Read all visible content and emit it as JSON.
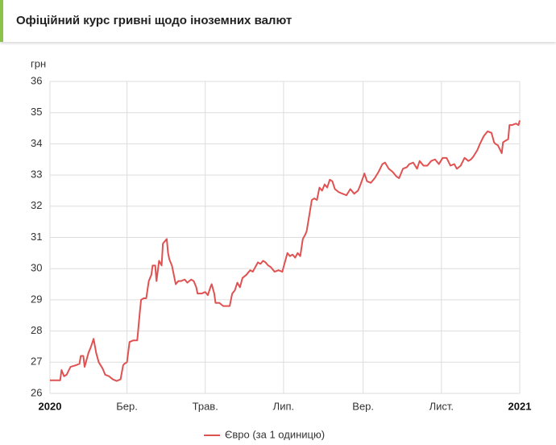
{
  "header": {
    "title": "Офіційний курс гривні щодо іноземних валют"
  },
  "chart_data": {
    "type": "line",
    "y_label": "грн",
    "xlim": [
      0,
      366
    ],
    "xticks": [
      {
        "value": 0,
        "label": "2020"
      },
      {
        "value": 60,
        "label": "Бер."
      },
      {
        "value": 121,
        "label": "Трав."
      },
      {
        "value": 182,
        "label": "Лип."
      },
      {
        "value": 244,
        "label": "Вер."
      },
      {
        "value": 305,
        "label": "Лист."
      },
      {
        "value": 366,
        "label": "2021"
      }
    ],
    "ylim": [
      26,
      36
    ],
    "yticks": [
      26,
      27,
      28,
      29,
      30,
      31,
      32,
      33,
      34,
      35,
      36
    ],
    "grid": true,
    "legend": "bottom",
    "x": [
      0,
      8,
      9,
      11,
      13,
      16,
      20,
      23,
      24,
      26,
      27,
      30,
      32,
      34,
      36,
      38,
      41,
      43,
      46,
      49,
      52,
      55,
      57,
      58,
      60,
      62,
      65,
      68,
      70,
      71,
      73,
      75,
      77,
      79,
      80,
      82,
      83,
      85,
      87,
      88,
      89,
      91,
      92,
      93,
      95,
      98,
      100,
      102,
      105,
      107,
      110,
      112,
      114,
      115,
      118,
      121,
      123,
      125,
      126,
      128,
      129,
      132,
      135,
      138,
      140,
      142,
      144,
      146,
      148,
      150,
      153,
      156,
      158,
      160,
      162,
      164,
      166,
      168,
      170,
      172,
      175,
      178,
      181,
      183,
      185,
      187,
      189,
      191,
      193,
      195,
      197,
      199,
      200,
      202,
      204,
      206,
      208,
      210,
      212,
      214,
      216,
      218,
      220,
      222,
      225,
      228,
      231,
      234,
      237,
      240,
      242,
      245,
      247,
      250,
      253,
      256,
      259,
      261,
      264,
      267,
      270,
      272,
      275,
      278,
      280,
      283,
      286,
      288,
      291,
      294,
      297,
      300,
      303,
      306,
      309,
      312,
      315,
      317,
      320,
      323,
      326,
      328,
      330,
      333,
      335,
      338,
      341,
      344,
      346,
      347,
      349,
      352,
      353,
      355,
      357,
      358,
      360,
      363,
      365,
      366
    ],
    "series": [
      {
        "name": "Євро (за 1 одиницю)",
        "color": "#e05252",
        "values": [
          26.42,
          26.42,
          26.75,
          26.55,
          26.6,
          26.85,
          26.9,
          26.95,
          27.2,
          27.2,
          26.85,
          27.3,
          27.5,
          27.75,
          27.3,
          27.0,
          26.8,
          26.6,
          26.55,
          26.45,
          26.4,
          26.45,
          26.9,
          26.95,
          27.0,
          27.65,
          27.7,
          27.7,
          28.6,
          29.0,
          29.05,
          29.05,
          29.6,
          29.8,
          30.1,
          30.1,
          29.6,
          30.25,
          30.1,
          30.8,
          30.85,
          30.95,
          30.5,
          30.3,
          30.1,
          29.5,
          29.6,
          29.6,
          29.65,
          29.55,
          29.65,
          29.6,
          29.4,
          29.2,
          29.2,
          29.25,
          29.15,
          29.4,
          29.5,
          29.2,
          28.9,
          28.9,
          28.8,
          28.8,
          28.8,
          29.2,
          29.3,
          29.55,
          29.4,
          29.7,
          29.8,
          29.95,
          29.9,
          30.05,
          30.2,
          30.15,
          30.25,
          30.2,
          30.1,
          30.05,
          29.9,
          29.95,
          29.9,
          30.2,
          30.5,
          30.4,
          30.45,
          30.35,
          30.5,
          30.4,
          30.95,
          31.1,
          31.2,
          31.7,
          32.2,
          32.25,
          32.2,
          32.6,
          32.5,
          32.7,
          32.6,
          32.85,
          32.8,
          32.55,
          32.45,
          32.4,
          32.35,
          32.55,
          32.4,
          32.5,
          32.7,
          33.05,
          32.8,
          32.75,
          32.9,
          33.1,
          33.35,
          33.4,
          33.2,
          33.1,
          32.95,
          32.9,
          33.2,
          33.25,
          33.35,
          33.4,
          33.2,
          33.45,
          33.3,
          33.3,
          33.45,
          33.5,
          33.35,
          33.55,
          33.55,
          33.3,
          33.35,
          33.2,
          33.3,
          33.55,
          33.45,
          33.5,
          33.6,
          33.8,
          34.0,
          34.25,
          34.4,
          34.35,
          34.05,
          34.0,
          33.95,
          33.7,
          34.05,
          34.1,
          34.15,
          34.6,
          34.6,
          34.65,
          34.6,
          34.75
        ]
      }
    ]
  }
}
